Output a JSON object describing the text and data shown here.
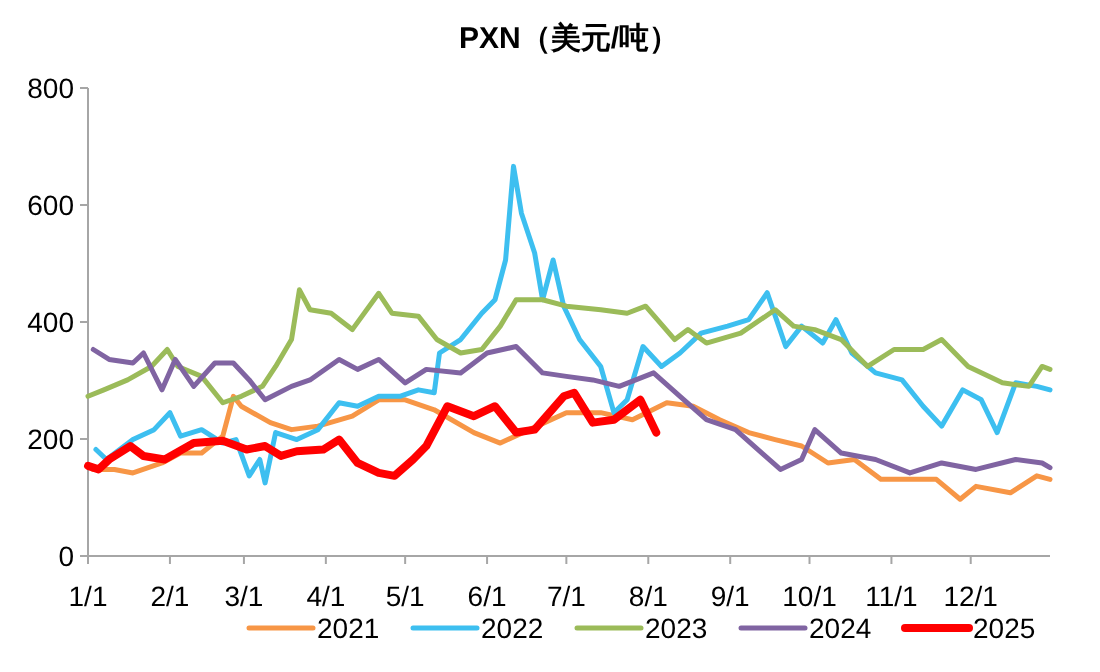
{
  "chart_data": {
    "type": "line",
    "title": "PXN（美元/吨）",
    "xlim": [
      "--01-01",
      "--12-31"
    ],
    "xticks": [
      {
        "value": "--01-01",
        "label": "1/1"
      },
      {
        "value": "--02-01",
        "label": "2/1"
      },
      {
        "value": "--03-01",
        "label": "3/1"
      },
      {
        "value": "--04-01",
        "label": "4/1"
      },
      {
        "value": "--05-01",
        "label": "5/1"
      },
      {
        "value": "--06-01",
        "label": "6/1"
      },
      {
        "value": "--07-01",
        "label": "7/1"
      },
      {
        "value": "--08-01",
        "label": "8/1"
      },
      {
        "value": "--09-01",
        "label": "9/1"
      },
      {
        "value": "--10-01",
        "label": "10/1"
      },
      {
        "value": "--11-01",
        "label": "11/1"
      },
      {
        "value": "--12-01",
        "label": "12/1"
      }
    ],
    "ylim": [
      0,
      800
    ],
    "yticks": [
      0,
      200,
      400,
      600,
      800
    ],
    "grid": false,
    "legend": "bottom",
    "marker": "none",
    "line_style": "solid",
    "series": [
      {
        "name": "2021",
        "color": "#f79646",
        "x": [
          "--01-03",
          "--01-11",
          "--01-18",
          "--01-29",
          "--02-05",
          "--02-13",
          "--02-21",
          "--02-25",
          "--02-28",
          "--03-11",
          "--03-19",
          "--03-29",
          "--04-11",
          "--04-21",
          "--05-01",
          "--05-12",
          "--05-27",
          "--06-06",
          "--06-17",
          "--07-01",
          "--07-14",
          "--07-26",
          "--08-08",
          "--08-18",
          "--08-28",
          "--09-08",
          "--09-18",
          "--09-28",
          "--10-08",
          "--10-18",
          "--10-28",
          "--11-08",
          "--11-18",
          "--11-27",
          "--12-03",
          "--12-16",
          "--12-26",
          "--12-31"
        ],
        "values": [
          148,
          148,
          142,
          159,
          176,
          176,
          205,
          273,
          256,
          228,
          216,
          222,
          239,
          267,
          267,
          250,
          211,
          193,
          216,
          245,
          245,
          233,
          262,
          256,
          233,
          211,
          199,
          188,
          159,
          165,
          131,
          131,
          131,
          97,
          119,
          108,
          137,
          131
        ]
      },
      {
        "name": "2022",
        "color": "#3dbff0",
        "x": [
          "--01-04",
          "--01-08",
          "--01-18",
          "--01-26",
          "--02-01",
          "--02-05",
          "--02-13",
          "--02-21",
          "--02-26",
          "--03-03",
          "--03-07",
          "--03-09",
          "--03-13",
          "--03-21",
          "--03-29",
          "--04-06",
          "--04-13",
          "--04-21",
          "--04-29",
          "--05-06",
          "--05-12",
          "--05-14",
          "--05-22",
          "--05-30",
          "--06-04",
          "--06-08",
          "--06-11",
          "--06-14",
          "--06-19",
          "--06-22",
          "--06-26",
          "--06-30",
          "--07-06",
          "--07-14",
          "--07-19",
          "--07-24",
          "--07-30",
          "--08-06",
          "--08-13",
          "--08-21",
          "--08-31",
          "--09-08",
          "--09-15",
          "--09-22",
          "--09-28",
          "--10-06",
          "--10-11",
          "--10-17",
          "--10-26",
          "--11-05",
          "--11-13",
          "--11-20",
          "--11-28",
          "--12-05",
          "--12-11",
          "--12-18",
          "--12-26",
          "--12-31"
        ],
        "values": [
          182,
          165,
          199,
          216,
          245,
          205,
          216,
          193,
          199,
          137,
          165,
          125,
          211,
          199,
          216,
          262,
          256,
          273,
          273,
          284,
          279,
          347,
          370,
          415,
          438,
          506,
          666,
          586,
          518,
          438,
          506,
          427,
          370,
          324,
          245,
          267,
          358,
          324,
          347,
          381,
          393,
          404,
          450,
          358,
          393,
          364,
          404,
          347,
          313,
          301,
          256,
          222,
          284,
          267,
          211,
          296,
          290,
          284
        ]
      },
      {
        "name": "2023",
        "color": "#9bbb59",
        "x": [
          "--01-01",
          "--01-07",
          "--01-16",
          "--01-25",
          "--01-31",
          "--02-04",
          "--02-13",
          "--02-21",
          "--02-28",
          "--03-08",
          "--03-13",
          "--03-19",
          "--03-22",
          "--03-26",
          "--04-03",
          "--04-11",
          "--04-21",
          "--04-26",
          "--05-06",
          "--05-13",
          "--05-22",
          "--05-30",
          "--06-06",
          "--06-12",
          "--06-22",
          "--07-01",
          "--07-14",
          "--07-24",
          "--07-31",
          "--08-11",
          "--08-16",
          "--08-23",
          "--09-05",
          "--09-18",
          "--09-25",
          "--10-03",
          "--10-13",
          "--10-23",
          "--11-02",
          "--11-13",
          "--11-20",
          "--11-30",
          "--12-13",
          "--12-23",
          "--12-28",
          "--12-31"
        ],
        "values": [
          273,
          284,
          301,
          324,
          353,
          324,
          307,
          262,
          273,
          290,
          324,
          370,
          455,
          421,
          415,
          387,
          449,
          415,
          410,
          370,
          347,
          353,
          393,
          438,
          438,
          427,
          421,
          415,
          427,
          370,
          387,
          364,
          381,
          421,
          393,
          387,
          370,
          324,
          353,
          353,
          370,
          324,
          296,
          290,
          324,
          319
        ]
      },
      {
        "name": "2024",
        "color": "#8064a2",
        "x": [
          "--01-03",
          "--01-09",
          "--01-18",
          "--01-22",
          "--01-29",
          "--02-03",
          "--02-10",
          "--02-18",
          "--02-25",
          "--03-03",
          "--03-09",
          "--03-19",
          "--03-26",
          "--04-06",
          "--04-13",
          "--04-21",
          "--05-01",
          "--05-09",
          "--05-22",
          "--06-01",
          "--06-12",
          "--06-22",
          "--07-01",
          "--07-11",
          "--07-21",
          "--08-03",
          "--08-13",
          "--08-23",
          "--09-03",
          "--09-13",
          "--09-20",
          "--09-28",
          "--10-03",
          "--10-13",
          "--10-26",
          "--11-08",
          "--11-20",
          "--12-03",
          "--12-18",
          "--12-28",
          "--12-31"
        ],
        "values": [
          353,
          336,
          330,
          347,
          284,
          336,
          290,
          330,
          330,
          301,
          267,
          290,
          301,
          336,
          319,
          336,
          296,
          319,
          313,
          347,
          358,
          313,
          307,
          301,
          290,
          313,
          273,
          233,
          216,
          176,
          148,
          165,
          216,
          176,
          165,
          142,
          159,
          148,
          165,
          159,
          151
        ]
      },
      {
        "name": "2025",
        "color": "#ff0000",
        "x": [
          "--01-01",
          "--01-05",
          "--01-09",
          "--01-17",
          "--01-22",
          "--01-30",
          "--02-10",
          "--02-21",
          "--03-02",
          "--03-09",
          "--03-15",
          "--03-21",
          "--03-31",
          "--04-06",
          "--04-13",
          "--04-21",
          "--04-27",
          "--05-04",
          "--05-09",
          "--05-17",
          "--05-27",
          "--06-04",
          "--06-12",
          "--06-19",
          "--06-30",
          "--07-04",
          "--07-11",
          "--07-19",
          "--07-29",
          "--08-04"
        ],
        "values": [
          154,
          148,
          165,
          188,
          171,
          165,
          193,
          197,
          182,
          188,
          171,
          179,
          182,
          199,
          159,
          142,
          137,
          165,
          188,
          256,
          239,
          256,
          211,
          216,
          273,
          279,
          228,
          233,
          267,
          211
        ]
      }
    ]
  }
}
